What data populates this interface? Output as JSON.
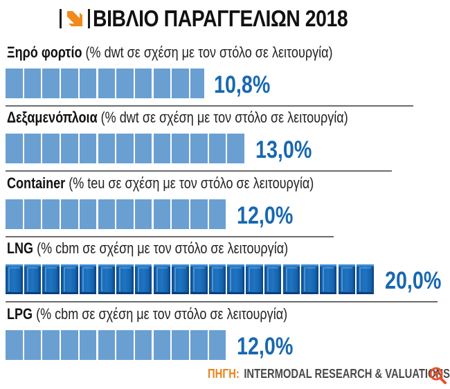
{
  "header": {
    "title": "ΒΙΒΛΙΟ ΠΑΡΑΓΓΕΛΙΩΝ 2018",
    "icon": "orange-arrow-down-right-icon"
  },
  "colors": {
    "light_bar": "#6a9fd2",
    "dark_bar": "#1a69b3",
    "value_text": "#1868b0",
    "source_label": "#e8841a",
    "accent": "#f08a1c"
  },
  "chart_data": {
    "type": "bar",
    "orientation": "horizontal",
    "title": "ΒΙΒΛΙΟ ΠΑΡΑΓΓΕΛΙΩΝ 2018",
    "unit": "%",
    "segment_unit": 1,
    "categories": [
      "Ξηρό φορτίο",
      "Δεξαμενόπλοια",
      "Container",
      "LNG",
      "LPG"
    ],
    "values": [
      10.8,
      13.0,
      12.0,
      20.0,
      12.0
    ],
    "rows": [
      {
        "name": "Ξηρό φορτίο",
        "subtitle": "(% dwt σε σχέση με τον στόλο σε λειτουργία)",
        "value": 10.8,
        "value_label": "10,8%",
        "highlight": false
      },
      {
        "name": "Δεξαμενόπλοια",
        "subtitle": "(% dwt σε σχέση με τον στόλο σε λειτουργία)",
        "value": 13.0,
        "value_label": "13,0%",
        "highlight": false
      },
      {
        "name": "Container",
        "subtitle": "(% teu σε σχέση με τον στόλο σε λειτουργία)",
        "value": 12.0,
        "value_label": "12,0%",
        "highlight": false
      },
      {
        "name": "LNG",
        "subtitle": "(% cbm σε σχέση με τον στόλο σε λειτουργία)",
        "value": 20.0,
        "value_label": "20,0%",
        "highlight": true
      },
      {
        "name": "LPG",
        "subtitle": "(% cbm σε σχέση με τον στόλο σε λειτουργία)",
        "value": 12.0,
        "value_label": "12,0%",
        "highlight": false
      }
    ],
    "grid": false,
    "legend": "none"
  },
  "footer": {
    "source_label": "ΠΗΓΗ:",
    "source_text": "INTERMODAL RESEARCH & VALUATIONS",
    "zoom_icon": "zoom-in-icon"
  }
}
